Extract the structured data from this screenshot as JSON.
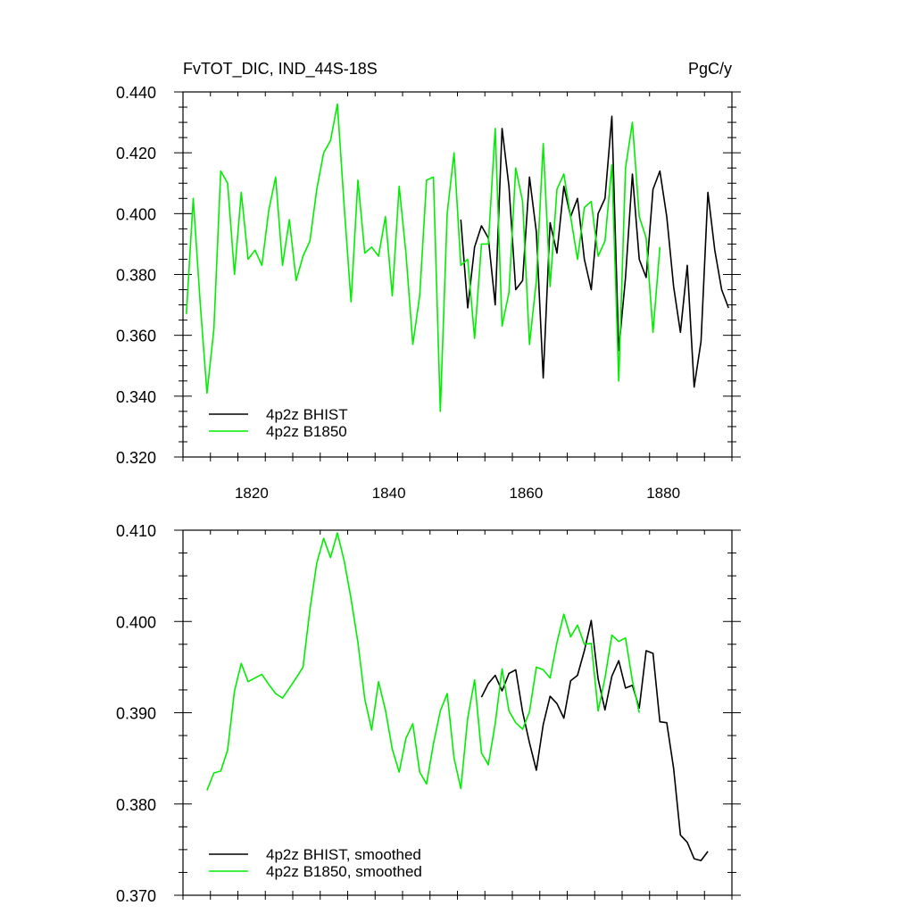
{
  "colors": {
    "bhist": "#000000",
    "b1850": "#00ee00"
  },
  "chart_data": [
    {
      "type": "line",
      "title": "FvTOT_DIC, IND_44S-18S",
      "units": "PgC/y",
      "xlim": [
        1810,
        1890
      ],
      "ylim": [
        0.32,
        0.44
      ],
      "x_ticks": [
        1820,
        1840,
        1860,
        1880
      ],
      "y_ticks": [
        "0.320",
        "0.340",
        "0.360",
        "0.380",
        "0.400",
        "0.420",
        "0.440"
      ],
      "legend_position": "bottom-left",
      "series": [
        {
          "name": "4p2z BHIST",
          "color": "#000000",
          "x": [
            1850.5,
            1851.5,
            1852.5,
            1853.5,
            1854.5,
            1855.5,
            1856.5,
            1857.5,
            1858.5,
            1859.5,
            1860.5,
            1861.5,
            1862.5,
            1863.5,
            1864.5,
            1865.5,
            1866.5,
            1867.5,
            1868.5,
            1869.5,
            1870.5,
            1871.5,
            1872.5,
            1873.5,
            1874.5,
            1875.5,
            1876.5,
            1877.5,
            1878.5,
            1879.5,
            1880.5,
            1881.5,
            1882.5,
            1883.5,
            1884.5,
            1885.5,
            1886.5,
            1887.5,
            1888.5,
            1889.5
          ],
          "y": [
            0.398,
            0.369,
            0.389,
            0.396,
            0.392,
            0.37,
            0.428,
            0.409,
            0.375,
            0.378,
            0.412,
            0.394,
            0.346,
            0.397,
            0.387,
            0.409,
            0.399,
            0.405,
            0.385,
            0.375,
            0.4,
            0.405,
            0.432,
            0.355,
            0.379,
            0.413,
            0.385,
            0.379,
            0.408,
            0.414,
            0.399,
            0.376,
            0.361,
            0.383,
            0.343,
            0.358,
            0.407,
            0.388,
            0.375,
            0.369
          ]
        },
        {
          "name": "4p2z B1850",
          "color": "#00ee00",
          "x": [
            1810.5,
            1811.5,
            1812.5,
            1813.5,
            1814.5,
            1815.5,
            1816.5,
            1817.5,
            1818.5,
            1819.5,
            1820.5,
            1821.5,
            1822.5,
            1823.5,
            1824.5,
            1825.5,
            1826.5,
            1827.5,
            1828.5,
            1829.5,
            1830.5,
            1831.5,
            1832.5,
            1833.5,
            1834.5,
            1835.5,
            1836.5,
            1837.5,
            1838.5,
            1839.5,
            1840.5,
            1841.5,
            1842.5,
            1843.5,
            1844.5,
            1845.5,
            1846.5,
            1847.5,
            1848.5,
            1849.5,
            1850.5,
            1851.5,
            1852.5,
            1853.5,
            1854.5,
            1855.5,
            1856.5,
            1857.5,
            1858.5,
            1859.5,
            1860.5,
            1861.5,
            1862.5,
            1863.5,
            1864.5,
            1865.5,
            1866.5,
            1867.5,
            1868.5,
            1869.5,
            1870.5,
            1871.5,
            1872.5,
            1873.5,
            1874.5,
            1875.5,
            1876.5,
            1877.5,
            1878.5,
            1879.5
          ],
          "y": [
            0.367,
            0.405,
            0.371,
            0.341,
            0.362,
            0.414,
            0.41,
            0.38,
            0.407,
            0.385,
            0.388,
            0.383,
            0.401,
            0.412,
            0.383,
            0.398,
            0.378,
            0.386,
            0.391,
            0.408,
            0.42,
            0.424,
            0.436,
            0.402,
            0.371,
            0.411,
            0.387,
            0.389,
            0.386,
            0.399,
            0.373,
            0.409,
            0.387,
            0.357,
            0.373,
            0.411,
            0.412,
            0.335,
            0.4,
            0.42,
            0.383,
            0.385,
            0.359,
            0.39,
            0.39,
            0.428,
            0.363,
            0.374,
            0.415,
            0.404,
            0.357,
            0.378,
            0.423,
            0.376,
            0.408,
            0.413,
            0.399,
            0.385,
            0.402,
            0.404,
            0.386,
            0.391,
            0.416,
            0.345,
            0.415,
            0.43,
            0.399,
            0.392,
            0.361,
            0.389
          ]
        }
      ]
    },
    {
      "type": "line",
      "xlim": [
        1810,
        1890
      ],
      "ylim": [
        0.37,
        0.41
      ],
      "x_ticks": [
        1820,
        1840,
        1860,
        1880
      ],
      "y_ticks": [
        "0.370",
        "0.380",
        "0.390",
        "0.400",
        "0.410"
      ],
      "legend_position": "bottom-left",
      "series": [
        {
          "name": "4p2z BHIST, smoothed",
          "color": "#000000",
          "x": [
            1853.5,
            1854.5,
            1855.5,
            1856.5,
            1857.5,
            1858.5,
            1859.5,
            1860.5,
            1861.5,
            1862.5,
            1863.5,
            1864.5,
            1865.5,
            1866.5,
            1867.5,
            1868.5,
            1869.5,
            1870.5,
            1871.5,
            1872.5,
            1873.5,
            1874.5,
            1875.5,
            1876.5,
            1877.5,
            1878.5,
            1879.5,
            1880.5,
            1881.5,
            1882.5,
            1883.5,
            1884.5,
            1885.5,
            1886.5
          ],
          "y": [
            0.3917,
            0.3932,
            0.3941,
            0.3924,
            0.3943,
            0.3947,
            0.3901,
            0.3867,
            0.3837,
            0.3887,
            0.3918,
            0.391,
            0.3894,
            0.3935,
            0.3941,
            0.3968,
            0.4001,
            0.3937,
            0.3903,
            0.394,
            0.3957,
            0.3927,
            0.393,
            0.3905,
            0.3968,
            0.3965,
            0.389,
            0.3889,
            0.3839,
            0.3766,
            0.3758,
            0.374,
            0.3738,
            0.3748
          ]
        },
        {
          "name": "4p2z B1850, smoothed",
          "color": "#00ee00",
          "x": [
            1813.5,
            1814.5,
            1815.5,
            1816.5,
            1817.5,
            1818.5,
            1819.5,
            1820.5,
            1821.5,
            1822.5,
            1823.5,
            1824.5,
            1825.5,
            1826.5,
            1827.5,
            1828.5,
            1829.5,
            1830.5,
            1831.5,
            1832.5,
            1833.5,
            1834.5,
            1835.5,
            1836.5,
            1837.5,
            1838.5,
            1839.5,
            1840.5,
            1841.5,
            1842.5,
            1843.5,
            1844.5,
            1845.5,
            1846.5,
            1847.5,
            1848.5,
            1849.5,
            1850.5,
            1851.5,
            1852.5,
            1853.5,
            1854.5,
            1855.5,
            1856.5,
            1857.5,
            1858.5,
            1859.5,
            1860.5,
            1861.5,
            1862.5,
            1863.5,
            1864.5,
            1865.5,
            1866.5,
            1867.5,
            1868.5,
            1869.5,
            1870.5,
            1871.5,
            1872.5,
            1873.5,
            1874.5,
            1875.5,
            1876.5
          ],
          "y": [
            0.3815,
            0.3834,
            0.3836,
            0.3859,
            0.3924,
            0.3954,
            0.3934,
            0.3938,
            0.3942,
            0.3931,
            0.3921,
            0.3916,
            0.3927,
            0.3938,
            0.395,
            0.4013,
            0.4064,
            0.4091,
            0.407,
            0.4097,
            0.4066,
            0.4025,
            0.3977,
            0.3915,
            0.3881,
            0.3934,
            0.3903,
            0.386,
            0.3835,
            0.3872,
            0.3888,
            0.3835,
            0.3822,
            0.3866,
            0.3902,
            0.3921,
            0.385,
            0.3817,
            0.3894,
            0.3936,
            0.3856,
            0.3843,
            0.3888,
            0.3948,
            0.3902,
            0.3889,
            0.3882,
            0.3901,
            0.395,
            0.3947,
            0.3938,
            0.3977,
            0.4008,
            0.3983,
            0.3996,
            0.3975,
            0.3976,
            0.3902,
            0.3938,
            0.3985,
            0.3978,
            0.3982,
            0.3935,
            0.39
          ]
        }
      ]
    }
  ]
}
